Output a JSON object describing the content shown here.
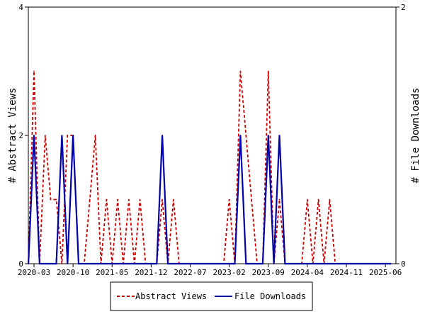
{
  "chart_data": {
    "type": "line",
    "title": "",
    "xlabel": "",
    "ylabel_left": "# Abstract Views",
    "ylabel_right": "# File Downloads",
    "x_ticks": [
      "2020-03",
      "2020-10",
      "2021-05",
      "2021-12",
      "2022-07",
      "2023-02",
      "2023-09",
      "2024-04",
      "2024-11",
      "2025-06"
    ],
    "x_start": "2020-03",
    "ylim_left": [
      0,
      4
    ],
    "ylim_right": [
      0,
      2
    ],
    "yticks_left": [
      0,
      2,
      4
    ],
    "yticks_right": [
      0,
      2
    ],
    "grid": false,
    "legend_position": "bottom",
    "months": [
      "2020-02",
      "2020-03",
      "2020-04",
      "2020-05",
      "2020-06",
      "2020-07",
      "2020-08",
      "2020-09",
      "2020-10",
      "2020-11",
      "2020-12",
      "2021-01",
      "2021-02",
      "2021-03",
      "2021-04",
      "2021-05",
      "2021-06",
      "2021-07",
      "2021-08",
      "2021-09",
      "2021-10",
      "2021-11",
      "2021-12",
      "2022-01",
      "2022-02",
      "2022-03",
      "2022-04",
      "2022-05",
      "2022-06",
      "2022-07",
      "2022-08",
      "2022-09",
      "2022-10",
      "2022-11",
      "2022-12",
      "2023-01",
      "2023-02",
      "2023-03",
      "2023-04",
      "2023-05",
      "2023-06",
      "2023-07",
      "2023-08",
      "2023-09",
      "2023-10",
      "2023-11",
      "2023-12",
      "2024-01",
      "2024-02",
      "2024-03",
      "2024-04",
      "2024-05",
      "2024-06",
      "2024-07",
      "2024-08",
      "2024-09",
      "2024-10",
      "2024-11",
      "2024-12",
      "2025-01",
      "2025-02",
      "2025-03",
      "2025-04",
      "2025-05",
      "2025-06",
      "2025-07"
    ],
    "series": [
      {
        "name": "Abstract Views",
        "axis": "left",
        "color": "#cc0000",
        "dash": true,
        "values": [
          0,
          3,
          0,
          2,
          1,
          1,
          0,
          2,
          2,
          0,
          0,
          1,
          2,
          0,
          1,
          0,
          1,
          0,
          1,
          0,
          1,
          0,
          0,
          0,
          1,
          0,
          1,
          0,
          0,
          0,
          0,
          0,
          0,
          0,
          0,
          0,
          1,
          0,
          3,
          2,
          1,
          0,
          0,
          3,
          0,
          1,
          0,
          0,
          0,
          0,
          1,
          0,
          1,
          0,
          1,
          0,
          0,
          0,
          0,
          0,
          0,
          0,
          0,
          0,
          0,
          0
        ]
      },
      {
        "name": "File Downloads",
        "axis": "right",
        "color": "#0000aa",
        "dash": false,
        "values": [
          0,
          1,
          0,
          0,
          0,
          0,
          1,
          0,
          1,
          0,
          0,
          0,
          0,
          0,
          0,
          0,
          0,
          0,
          0,
          0,
          0,
          0,
          0,
          0,
          1,
          0,
          0,
          0,
          0,
          0,
          0,
          0,
          0,
          0,
          0,
          0,
          0,
          0,
          1,
          0,
          0,
          0,
          0,
          1,
          0,
          1,
          0,
          0,
          0,
          0,
          0,
          0,
          0,
          0,
          0,
          0,
          0,
          0,
          0,
          0,
          0,
          0,
          0,
          0,
          0,
          0
        ]
      }
    ]
  }
}
